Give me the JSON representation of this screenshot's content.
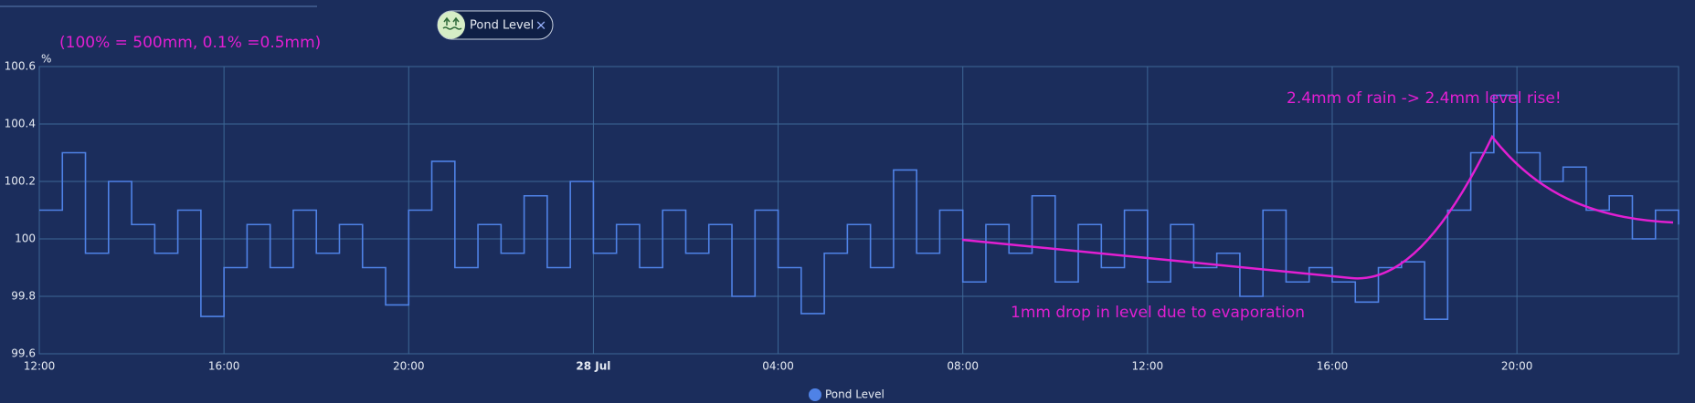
{
  "chip": {
    "label": "Pond Level",
    "close": "×"
  },
  "chart_data": {
    "type": "line",
    "title": "(100% = 500mm, 0.1% =0.5mm)",
    "y_label": "%",
    "x": [
      0,
      0.5,
      1,
      1.5,
      2,
      2.5,
      3,
      3.5,
      4,
      4.5,
      5,
      5.5,
      6,
      6.5,
      7,
      7.5,
      8,
      8.5,
      9,
      9.5,
      10,
      10.5,
      11,
      11.5,
      12,
      12.5,
      13,
      13.5,
      14,
      14.5,
      15,
      15.5,
      16,
      16.5,
      17,
      17.5,
      18,
      18.5,
      19,
      19.5,
      20,
      20.5,
      21,
      21.5,
      22,
      22.5,
      23,
      23.5,
      24,
      24.5,
      25,
      25.5,
      26,
      26.5,
      27,
      27.5,
      28,
      28.5,
      29,
      29.5,
      30,
      30.5,
      31,
      31.5,
      32,
      32.5,
      33,
      33.5,
      34,
      34.5,
      35,
      35.5
    ],
    "series": [
      {
        "name": "Pond Level",
        "color": "#4f82e6",
        "values": [
          100.1,
          100.3,
          99.95,
          100.2,
          100.05,
          99.95,
          100.1,
          99.73,
          99.9,
          100.05,
          99.9,
          100.1,
          99.95,
          100.05,
          99.9,
          99.77,
          100.1,
          100.27,
          99.9,
          100.05,
          99.95,
          100.15,
          99.9,
          100.2,
          99.95,
          100.05,
          99.9,
          100.1,
          99.95,
          100.05,
          99.8,
          100.1,
          99.9,
          99.74,
          99.95,
          100.05,
          99.9,
          100.24,
          99.95,
          100.1,
          99.85,
          100.05,
          99.95,
          100.15,
          99.85,
          100.05,
          99.9,
          100.1,
          99.85,
          100.05,
          99.9,
          99.95,
          99.8,
          100.1,
          99.85,
          99.9,
          99.85,
          99.78,
          99.9,
          99.92,
          99.72,
          100.1,
          100.3,
          100.5,
          100.3,
          100.2,
          100.25,
          100.1,
          100.15,
          100.0,
          100.1,
          100.05
        ]
      }
    ],
    "xlim": [
      0,
      35.5
    ],
    "xticks": [
      {
        "value": 0,
        "label": "12:00"
      },
      {
        "value": 4,
        "label": "16:00"
      },
      {
        "value": 8,
        "label": "20:00"
      },
      {
        "value": 12,
        "label": "28 Jul"
      },
      {
        "value": 16,
        "label": "04:00"
      },
      {
        "value": 20,
        "label": "08:00"
      },
      {
        "value": 24,
        "label": "12:00"
      },
      {
        "value": 28,
        "label": "16:00"
      },
      {
        "value": 32,
        "label": "20:00"
      }
    ],
    "ylim": [
      99.6,
      100.6
    ],
    "yticks": [
      99.6,
      99.8,
      100,
      100.2,
      100.4,
      100.6
    ],
    "grid": true,
    "annotations": [
      "2.4mm of rain -> 2.4mm level rise!",
      "1mm drop in level due to evaporation"
    ]
  }
}
